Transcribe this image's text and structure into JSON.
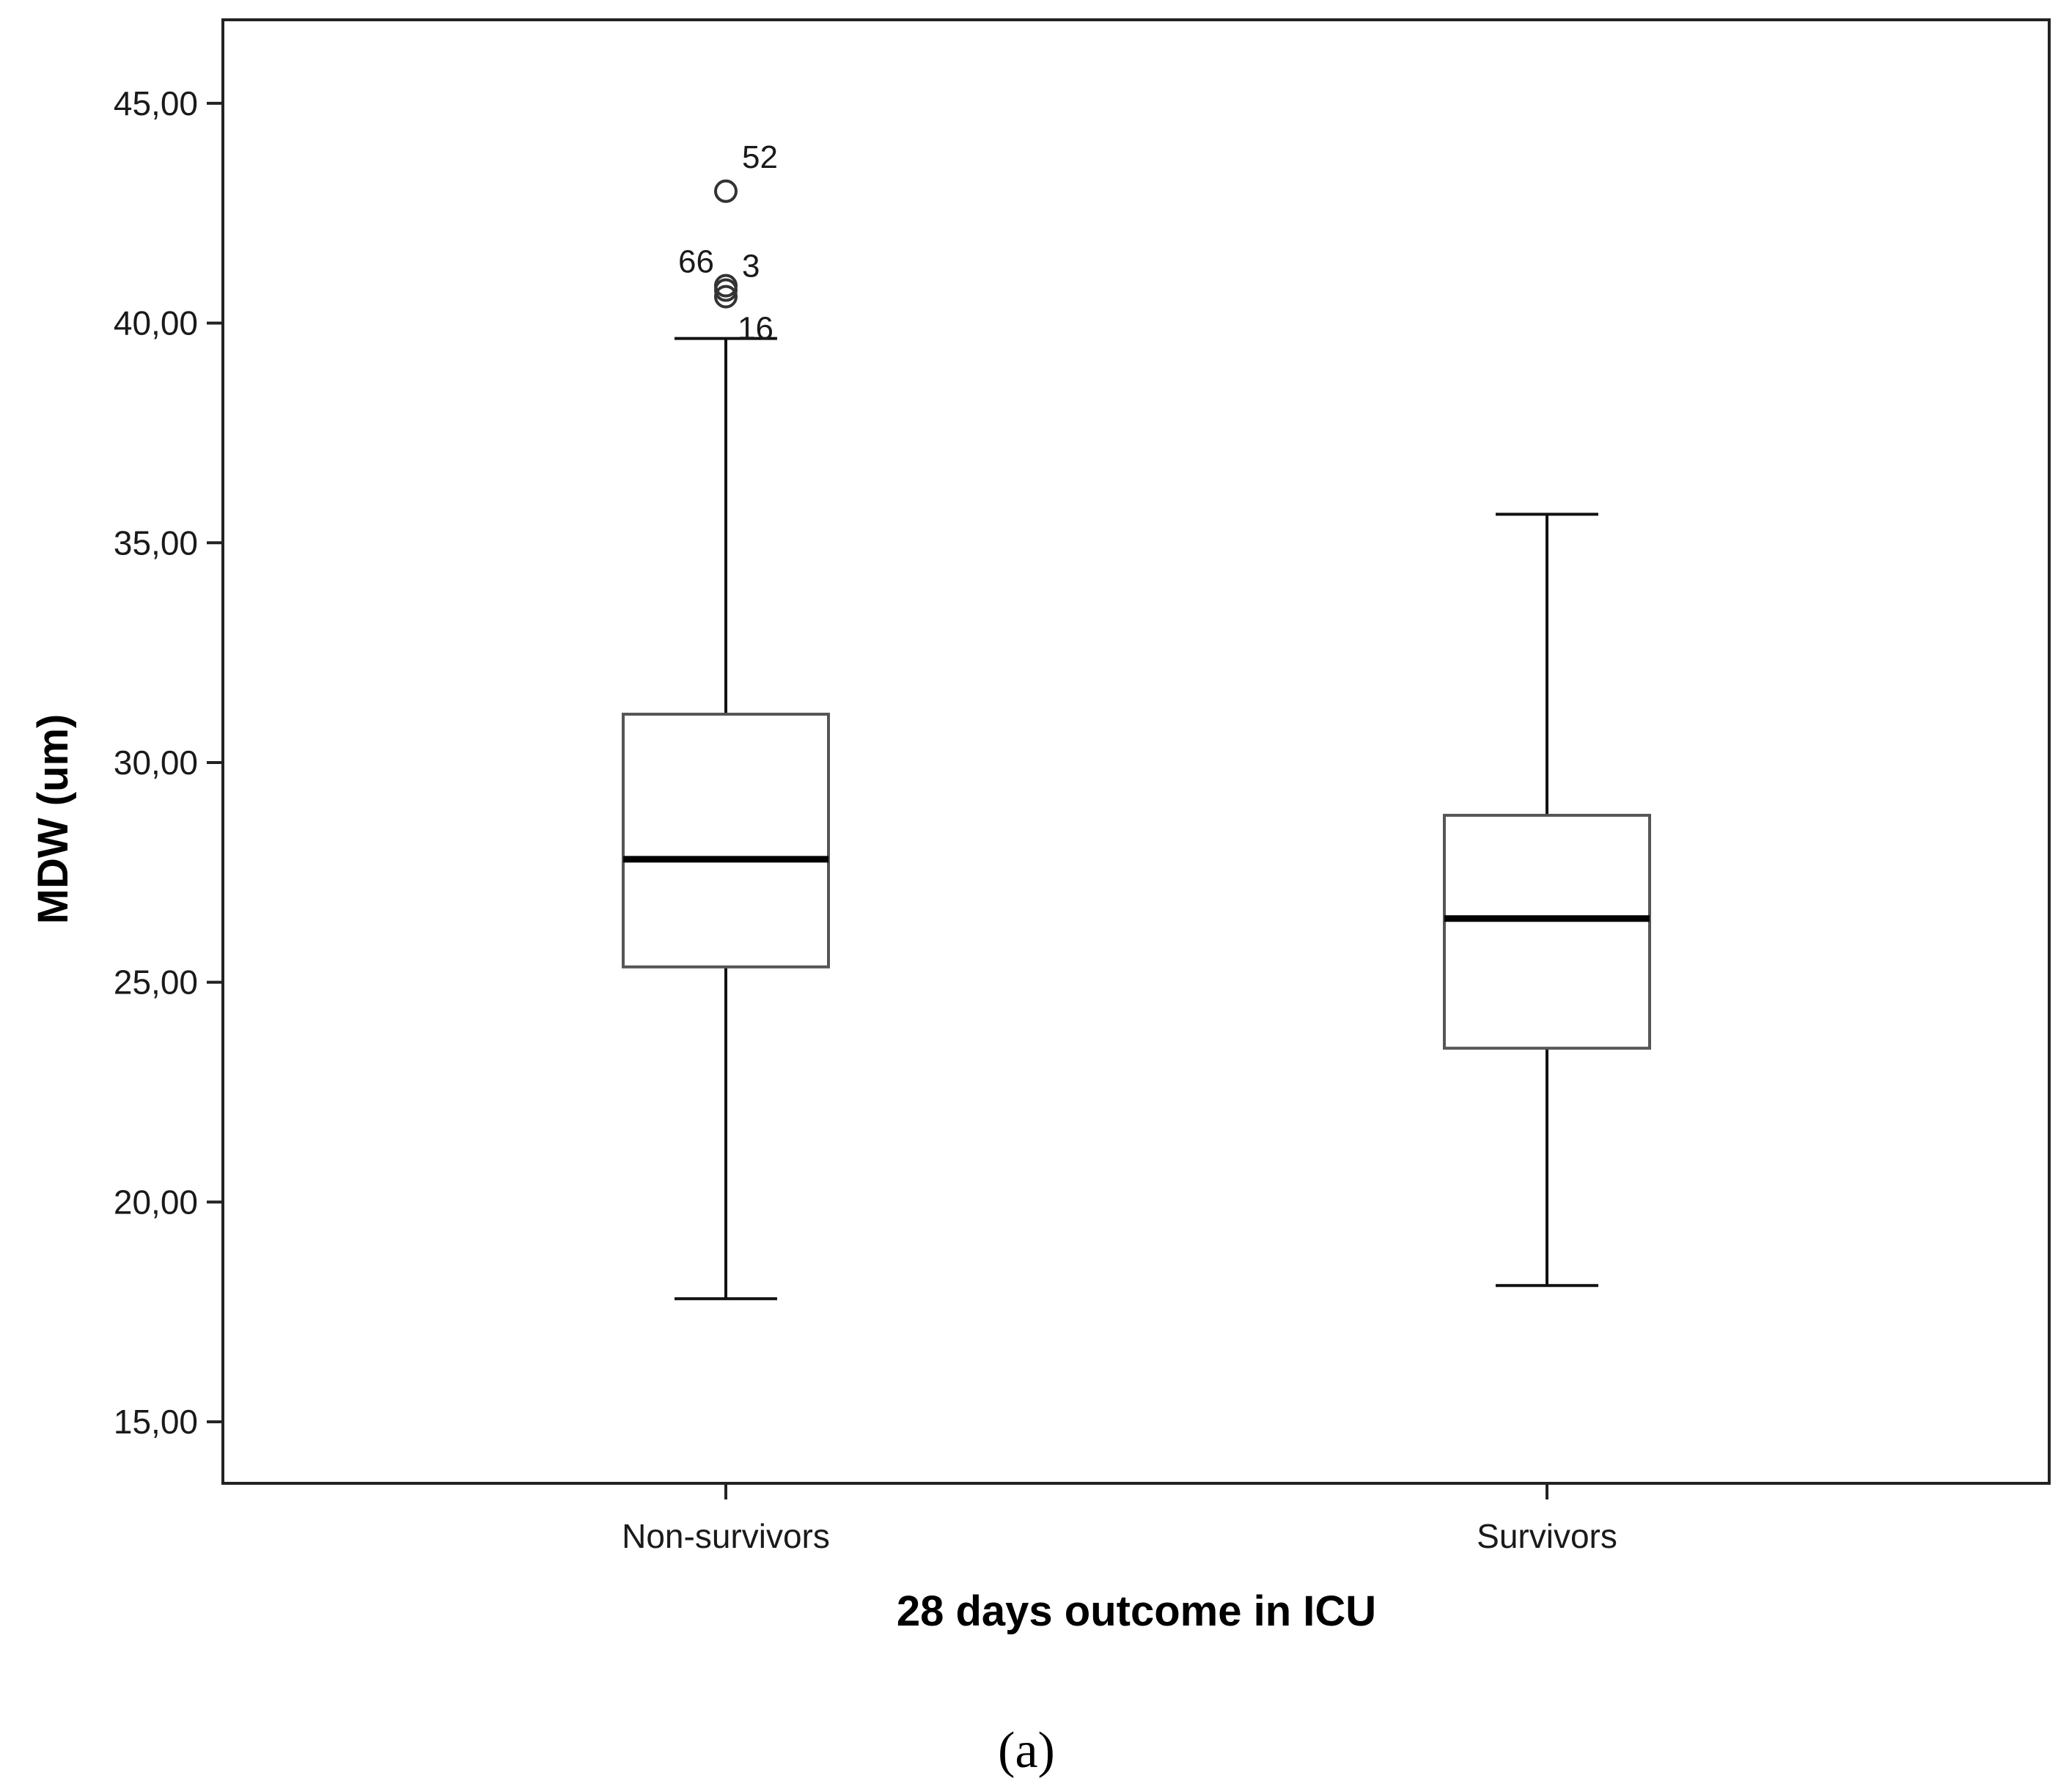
{
  "chart_data": {
    "type": "boxplot",
    "xlabel": "28 days outcome in ICU",
    "ylabel": "MDW (um)",
    "ylim": [
      13.6,
      46.9
    ],
    "yticks": [
      15,
      20,
      25,
      30,
      35,
      40,
      45
    ],
    "ytick_labels": [
      "15,00",
      "20,00",
      "25,00",
      "30,00",
      "35,00",
      "40,00",
      "45,00"
    ],
    "grid": false,
    "categories": [
      "Non-survivors",
      "Survivors"
    ],
    "groups": [
      {
        "category": "Non-survivors",
        "whisker_low": 17.8,
        "q1": 25.35,
        "median": 27.8,
        "q3": 31.1,
        "whisker_high": 39.65,
        "outliers": [
          {
            "value": 43.0,
            "label": "52"
          },
          {
            "value": 40.85,
            "label": "66"
          },
          {
            "value": 40.75,
            "label": "3"
          },
          {
            "value": 40.6,
            "label": "16"
          }
        ]
      },
      {
        "category": "Survivors",
        "whisker_low": 18.1,
        "q1": 23.5,
        "median": 26.45,
        "q3": 28.8,
        "whisker_high": 35.65,
        "outliers": []
      }
    ]
  },
  "caption": "(a)"
}
